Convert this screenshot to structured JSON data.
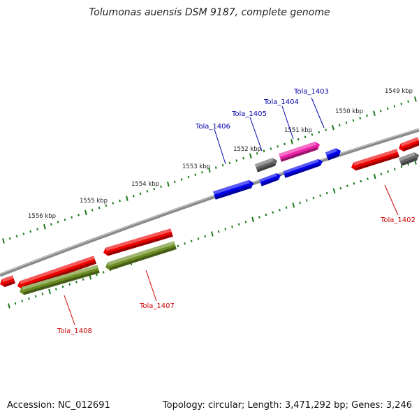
{
  "title": "Tolumonas auensis DSM 9187, complete genome",
  "footer": {
    "accession": "Accession: NC_012691",
    "topology": "Topology: circular; Length: 3,471,292 bp; Genes: 3,246"
  },
  "colors": {
    "background": "#ffffff",
    "backbone": "#808080",
    "ticks": "#1a7a1a",
    "label_forward": "#0000aa",
    "label_reverse": "#cc0000"
  },
  "outer_ticks": [
    {
      "label": "1549 kbp"
    },
    {
      "label": "1550 kbp"
    },
    {
      "label": "1551 kbp"
    },
    {
      "label": "1552 kbp"
    },
    {
      "label": "1553 kbp"
    },
    {
      "label": "1554 kbp"
    },
    {
      "label": "1555 kbp"
    },
    {
      "label": "1556 kbp"
    }
  ],
  "genes": [
    {
      "name": "Tola_1403",
      "strand": "forward",
      "color": "#0000ee"
    },
    {
      "name": "Tola_1404",
      "strand": "forward",
      "color": "#ee22aa"
    },
    {
      "name": "Tola_1405",
      "strand": "forward",
      "color": "#666666"
    },
    {
      "name": "Tola_1406",
      "strand": "forward",
      "color": "#0000ee"
    },
    {
      "name": "Tola_1402",
      "strand": "reverse",
      "color": "#ee0000"
    },
    {
      "name": "Tola_1407",
      "strand": "reverse",
      "color": "#6b8e23"
    },
    {
      "name": "Tola_1408",
      "strand": "reverse",
      "color": "#6b8e23"
    }
  ]
}
